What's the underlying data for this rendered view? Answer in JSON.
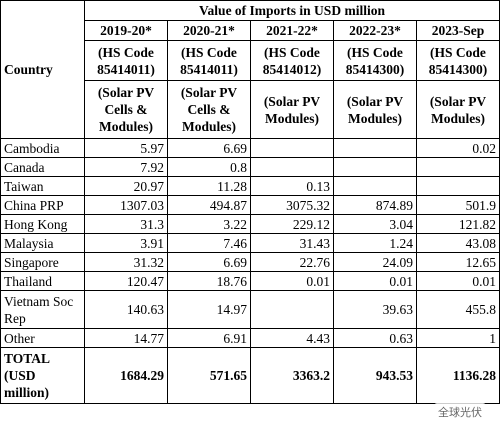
{
  "header": {
    "country": "Country",
    "title": "Value of Imports in USD million",
    "columns": [
      {
        "period": "2019-20*",
        "hs_code": "(HS Code 85414011)",
        "description": "(Solar PV Cells & Modules)"
      },
      {
        "period": "2020-21*",
        "hs_code": "(HS Code 85414011)",
        "description": "(Solar PV Cells & Modules)"
      },
      {
        "period": "2021-22*",
        "hs_code": "(HS Code 85414012)",
        "description": "(Solar PV Modules)"
      },
      {
        "period": "2022-23*",
        "hs_code": "(HS Code 85414300)",
        "description": "(Solar PV Modules)"
      },
      {
        "period": "2023-Sep",
        "hs_code": "(HS Code 85414300)",
        "description": "(Solar PV Modules)"
      }
    ]
  },
  "table": {
    "rows": [
      {
        "country": "Cambodia",
        "values": [
          "5.97",
          "6.69",
          null,
          null,
          "0.02"
        ]
      },
      {
        "country": "Canada",
        "values": [
          "7.92",
          "0.8",
          null,
          null,
          null
        ]
      },
      {
        "country": "Taiwan",
        "values": [
          "20.97",
          "11.28",
          "0.13",
          null,
          null
        ]
      },
      {
        "country": "China PRP",
        "values": [
          "1307.03",
          "494.87",
          "3075.32",
          "874.89",
          "501.9"
        ]
      },
      {
        "country": "Hong Kong",
        "values": [
          "31.3",
          "3.22",
          "229.12",
          "3.04",
          "121.82"
        ]
      },
      {
        "country": "Malaysia",
        "values": [
          "3.91",
          "7.46",
          "31.43",
          "1.24",
          "43.08"
        ]
      },
      {
        "country": "Singapore",
        "values": [
          "31.32",
          "6.69",
          "22.76",
          "24.09",
          "12.65"
        ]
      },
      {
        "country": "Thailand",
        "values": [
          "120.47",
          "18.76",
          "0.01",
          "0.01",
          "0.01"
        ]
      },
      {
        "country": "Vietnam Soc Rep",
        "values": [
          "140.63",
          "14.97",
          null,
          "39.63",
          "455.8"
        ]
      },
      {
        "country": "Other",
        "values": [
          "14.77",
          "6.91",
          "4.43",
          "0.63",
          "1"
        ]
      }
    ],
    "total": {
      "label": "TOTAL (USD million)",
      "values": [
        "1684.29",
        "571.65",
        "3363.2",
        "943.53",
        "1136.28"
      ]
    }
  },
  "watermark": {
    "text": "全球光伏"
  }
}
